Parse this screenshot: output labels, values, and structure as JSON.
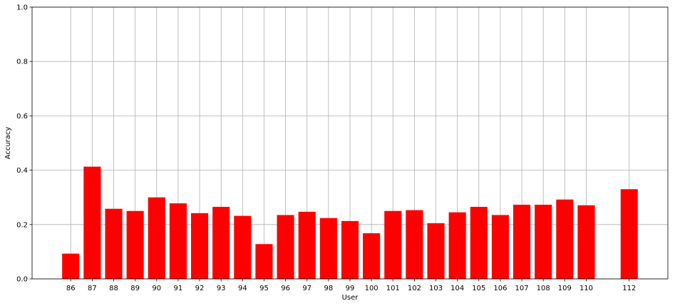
{
  "chart_data": {
    "type": "bar",
    "xlabel": "User",
    "ylabel": "Accuracy",
    "ylim": [
      0,
      1.0
    ],
    "xlim": [
      84.2,
      113.8
    ],
    "yticks": [
      "0.0",
      "0.2",
      "0.4",
      "0.6",
      "0.8",
      "1.0"
    ],
    "grid": true,
    "bar_color": "#ff0000",
    "categories": [
      86,
      87,
      88,
      89,
      90,
      91,
      92,
      93,
      94,
      95,
      96,
      97,
      98,
      99,
      100,
      101,
      102,
      103,
      104,
      105,
      106,
      107,
      108,
      109,
      110,
      112
    ],
    "values": [
      0.093,
      0.413,
      0.258,
      0.25,
      0.3,
      0.278,
      0.242,
      0.265,
      0.232,
      0.128,
      0.235,
      0.247,
      0.224,
      0.213,
      0.168,
      0.25,
      0.253,
      0.205,
      0.245,
      0.265,
      0.235,
      0.273,
      0.273,
      0.292,
      0.271,
      0.33
    ]
  }
}
